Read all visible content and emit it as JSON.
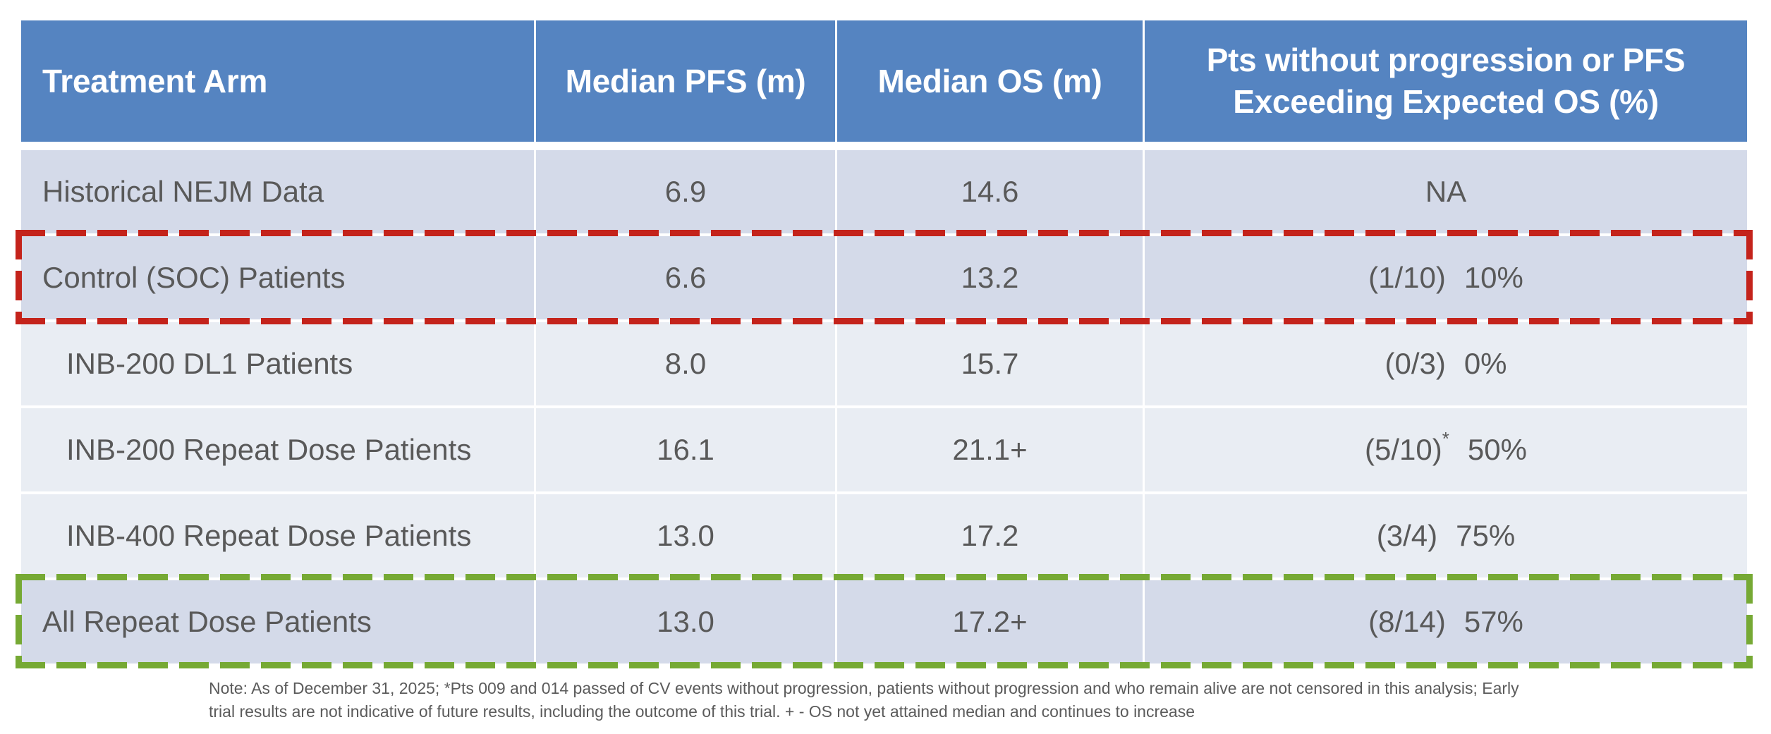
{
  "colors": {
    "header_bg": "#5584c1",
    "header_text": "#ffffff",
    "row_band_dark": "#d4dae9",
    "row_band_light": "#e9edf3",
    "body_text": "#595959",
    "highlight_red_dash": "#c4231b",
    "highlight_green_dash": "#76a934"
  },
  "table": {
    "headers": [
      "Treatment Arm",
      "Median PFS (m)",
      "Median OS (m)",
      "Pts without progression or PFS Exceeding Expected OS (%)"
    ],
    "rows": [
      {
        "arm": "Historical NEJM Data",
        "pfs": "6.9",
        "os": "14.6",
        "fraction": "NA",
        "sup": "",
        "pct": ""
      },
      {
        "arm": "Control (SOC) Patients",
        "pfs": "6.6",
        "os": "13.2",
        "fraction": "(1/10)",
        "sup": "",
        "pct": "10%"
      },
      {
        "arm": "INB-200 DL1 Patients",
        "pfs": "8.0",
        "os": "15.7",
        "fraction": "(0/3)",
        "sup": "",
        "pct": "0%"
      },
      {
        "arm": "INB-200 Repeat Dose Patients",
        "pfs": "16.1",
        "os": "21.1+",
        "fraction": "(5/10)",
        "sup": "*",
        "pct": "50%"
      },
      {
        "arm": "INB-400 Repeat Dose Patients",
        "pfs": "13.0",
        "os": "17.2",
        "fraction": "(3/4)",
        "sup": "",
        "pct": "75%"
      },
      {
        "arm": "All Repeat Dose Patients",
        "pfs": "13.0",
        "os": "17.2+",
        "fraction": "(8/14)",
        "sup": "",
        "pct": "57%"
      }
    ]
  },
  "note": {
    "line1": "Note: As of December 31, 2025; *Pts 009 and 014 passed of CV events without progression, patients without progression and who remain alive are not censored in this analysis; Early",
    "line2": "trial results are not indicative of future results, including the outcome of this trial. + - OS not yet attained median and continues to increase"
  },
  "chart_data": {
    "type": "table",
    "columns": [
      "Treatment Arm",
      "Median PFS (m)",
      "Median OS (m)",
      "Pts without progression or PFS Exceeding Expected OS (%)"
    ],
    "rows": [
      [
        "Historical NEJM Data",
        "6.9",
        "14.6",
        "NA"
      ],
      [
        "Control (SOC) Patients",
        "6.6",
        "13.2",
        "(1/10) 10%"
      ],
      [
        "INB-200 DL1 Patients",
        "8.0",
        "15.7",
        "(0/3) 0%"
      ],
      [
        "INB-200 Repeat Dose Patients",
        "16.1",
        "21.1+",
        "(5/10)* 50%"
      ],
      [
        "INB-400 Repeat Dose Patients",
        "13.0",
        "17.2",
        "(3/4) 75%"
      ],
      [
        "All Repeat Dose Patients",
        "13.0",
        "17.2+",
        "(8/14) 57%"
      ]
    ],
    "highlighted_rows": [
      {
        "row": "Control (SOC) Patients",
        "style": "red-dashed-outline"
      },
      {
        "row": "All Repeat Dose Patients",
        "style": "green-dashed-outline"
      }
    ],
    "footnote": "Note: As of December 31, 2025; *Pts 009 and 014 passed of CV events without progression, patients without progression and who remain alive are not censored in this analysis; Early trial results are not indicative of future results, including the outcome of this trial. + - OS not yet attained median and continues to increase"
  }
}
